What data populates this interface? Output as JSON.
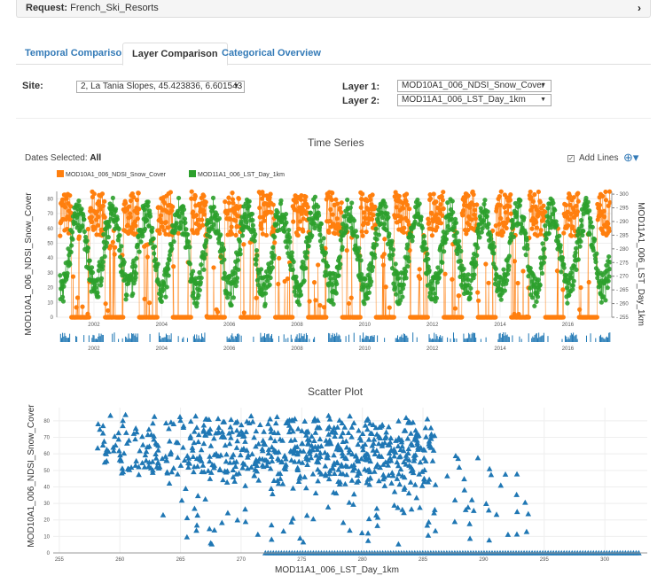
{
  "request": {
    "label": "Request:",
    "value": "French_Ski_Resorts"
  },
  "tabs": [
    {
      "label": "Temporal Comparison",
      "active": false
    },
    {
      "label": "Layer Comparison",
      "active": true
    },
    {
      "label": "Categorical Overview",
      "active": false
    }
  ],
  "controls": {
    "site_label": "Site:",
    "site_value": "2, La Tania Slopes, 45.423836, 6.601543",
    "layer1_label": "Layer 1:",
    "layer1_value": "MOD10A1_006_NDSI_Snow_Cover",
    "layer2_label": "Layer 2:",
    "layer2_value": "MOD11A1_006_LST_Day_1km"
  },
  "time_series": {
    "title": "Time Series",
    "dates_selected_label": "Dates Selected:",
    "dates_selected_value": "All",
    "add_lines_label": "Add Lines",
    "legend": [
      {
        "name": "MOD10A1_006_NDSI_Snow_Cover",
        "color": "#ff7f0e"
      },
      {
        "name": "MOD11A1_006_LST_Day_1km",
        "color": "#2ca02c"
      }
    ]
  },
  "scatter": {
    "title": "Scatter Plot"
  },
  "colors": {
    "orange": "#ff7f0e",
    "green": "#2ca02c",
    "blue": "#1f77b4",
    "link": "#337ab7"
  },
  "chart_data": [
    {
      "type": "line",
      "title": "Time Series",
      "xlabel": "",
      "ylabel": "MOD10A1_006_NDSI_Snow_Cover",
      "y2label": "MOD11A1_006_LST_Day_1km",
      "xlim": [
        2000.9,
        2017.3
      ],
      "ylim": [
        0,
        85
      ],
      "y2lim": [
        255,
        301
      ],
      "x_ticks": [
        "2002",
        "2004",
        "2006",
        "2008",
        "2010",
        "2012",
        "2014",
        "2016"
      ],
      "y_ticks": [
        0,
        10,
        20,
        30,
        40,
        50,
        60,
        70,
        80
      ],
      "y2_ticks": [
        255,
        260,
        265,
        270,
        275,
        280,
        285,
        290,
        295,
        300
      ],
      "series": [
        {
          "name": "MOD10A1_006_NDSI_Snow_Cover",
          "axis": "left",
          "pattern": "seasonal: ~0 in summer, 60-85 in winter, 2001-2017"
        },
        {
          "name": "MOD11A1_006_LST_Day_1km",
          "axis": "right",
          "pattern": "seasonal: ~262-270 in winter, 290-298 in summer, 2001-2017"
        }
      ],
      "grid": true,
      "legend": "top-left"
    },
    {
      "type": "scatter",
      "title": "Scatter Plot",
      "xlabel": "MOD11A1_006_LST_Day_1km",
      "ylabel": "MOD10A1_006_NDSI_Snow_Cover",
      "x_ticks": [
        255,
        260,
        265,
        270,
        275,
        280,
        285,
        290,
        295,
        300
      ],
      "y_ticks": [
        0,
        10,
        20,
        30,
        40,
        50,
        60,
        70,
        80
      ],
      "xlim": [
        254.5,
        303.5
      ],
      "ylim": [
        0,
        88
      ],
      "marker": "triangle",
      "pattern": "dense cluster 258-285 K at 50-85; sparse mid values; y=0 band from 272-303 K",
      "grid": true
    }
  ]
}
